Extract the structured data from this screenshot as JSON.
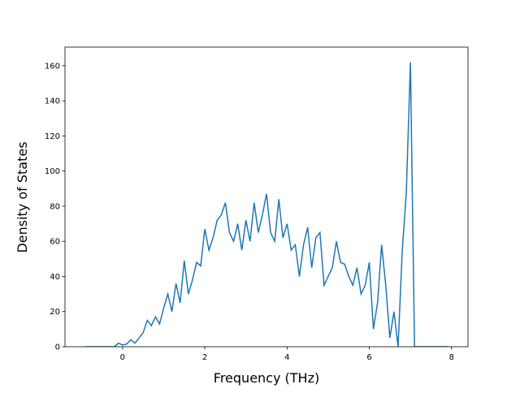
{
  "chart_data": {
    "type": "line",
    "x_label": "Frequency (THz)",
    "y_label": "Density of States",
    "x": [
      -0.9,
      -0.8,
      -0.7,
      -0.6,
      -0.5,
      -0.4,
      -0.3,
      -0.2,
      -0.1,
      0,
      0.1,
      0.2,
      0.3,
      0.4,
      0.5,
      0.6,
      0.7,
      0.8,
      0.9,
      1.0,
      1.1,
      1.2,
      1.3,
      1.4,
      1.5,
      1.6,
      1.7,
      1.8,
      1.9,
      2.0,
      2.1,
      2.2,
      2.3,
      2.4,
      2.5,
      2.6,
      2.7,
      2.8,
      2.9,
      3.0,
      3.1,
      3.2,
      3.3,
      3.4,
      3.5,
      3.6,
      3.7,
      3.8,
      3.9,
      4.0,
      4.1,
      4.2,
      4.3,
      4.4,
      4.5,
      4.6,
      4.7,
      4.8,
      4.9,
      5.0,
      5.1,
      5.2,
      5.3,
      5.4,
      5.5,
      5.6,
      5.7,
      5.8,
      5.9,
      6.0,
      6.1,
      6.2,
      6.3,
      6.4,
      6.5,
      6.6,
      6.7,
      6.8,
      6.9,
      7.0,
      7.1,
      7.2,
      7.3,
      7.4,
      7.5,
      7.6,
      7.7,
      7.8,
      7.9
    ],
    "series": [
      {
        "color": "#1f77b4",
        "values": [
          0,
          0,
          0,
          0,
          0,
          0,
          0,
          0,
          2,
          1,
          1.5,
          4,
          2,
          5,
          8,
          15,
          12,
          17,
          13,
          22,
          30,
          20,
          36,
          25,
          49,
          30,
          38,
          48,
          46,
          67,
          55,
          62,
          72,
          75,
          82,
          65,
          60,
          70,
          55,
          72,
          60,
          82,
          65,
          75,
          87,
          65,
          60,
          84,
          62,
          70,
          55,
          58,
          40,
          58,
          68,
          45,
          62,
          65,
          35,
          40,
          45,
          60,
          48,
          47,
          40,
          35,
          45,
          30,
          35,
          48,
          10,
          25,
          58,
          35,
          5,
          20,
          0,
          54,
          88,
          162,
          0,
          0,
          0,
          0,
          0,
          0,
          0,
          0,
          0
        ]
      }
    ],
    "xlim": [
      -1.4,
      8.4
    ],
    "ylim": [
      0,
      170.6
    ],
    "xticks": [
      0,
      2,
      4,
      6,
      8
    ],
    "yticks": [
      0,
      20,
      40,
      60,
      80,
      100,
      120,
      140,
      160
    ]
  }
}
